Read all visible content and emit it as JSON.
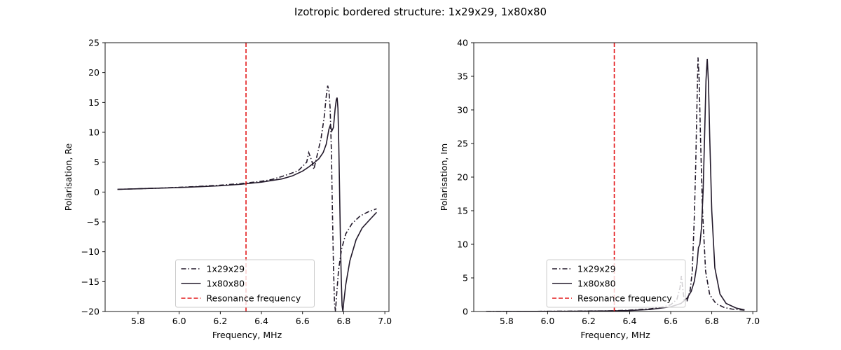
{
  "figure": {
    "title": "Izotropic bordered structure: 1x29x29, 1x80x80"
  },
  "chart_data": [
    {
      "type": "line",
      "xlabel": "Frequency, MHz",
      "ylabel": "Polarisation, Re",
      "xlim": [
        5.64,
        7.02
      ],
      "ylim": [
        -20,
        25
      ],
      "xticks": [
        5.8,
        6.0,
        6.2,
        6.4,
        6.6,
        6.8,
        7.0
      ],
      "yticks": [
        -20,
        -15,
        -10,
        -5,
        0,
        5,
        10,
        15,
        20,
        25
      ],
      "xtick_labels": [
        "5.8",
        "6.0",
        "6.2",
        "6.4",
        "6.6",
        "6.8",
        "7.0"
      ],
      "ytick_labels": [
        "−20",
        "−15",
        "−10",
        "−5",
        "0",
        "5",
        "10",
        "15",
        "20",
        "25"
      ],
      "legend_position": "lower center",
      "resonance_x": 6.325,
      "series": [
        {
          "name": "1x29x29",
          "style": "dashdot",
          "color": "#231a2b",
          "points": [
            [
              5.7,
              0.45
            ],
            [
              5.8,
              0.55
            ],
            [
              5.9,
              0.65
            ],
            [
              6.0,
              0.8
            ],
            [
              6.1,
              0.95
            ],
            [
              6.2,
              1.15
            ],
            [
              6.3,
              1.4
            ],
            [
              6.4,
              1.8
            ],
            [
              6.45,
              2.1
            ],
            [
              6.5,
              2.6
            ],
            [
              6.55,
              3.2
            ],
            [
              6.58,
              3.6
            ],
            [
              6.6,
              4.3
            ],
            [
              6.62,
              5.0
            ],
            [
              6.63,
              6.6
            ],
            [
              6.645,
              5.2
            ],
            [
              6.655,
              3.8
            ],
            [
              6.665,
              5.3
            ],
            [
              6.675,
              6.8
            ],
            [
              6.69,
              9.0
            ],
            [
              6.705,
              12.5
            ],
            [
              6.715,
              16.0
            ],
            [
              6.722,
              17.8
            ],
            [
              6.728,
              17.0
            ],
            [
              6.734,
              14.0
            ],
            [
              6.74,
              7.0
            ],
            [
              6.745,
              -3.0
            ],
            [
              6.75,
              -12.0
            ],
            [
              6.755,
              -18.5
            ],
            [
              6.76,
              -20
            ],
            [
              6.765,
              -17.5
            ],
            [
              6.775,
              -13.0
            ],
            [
              6.79,
              -9.5
            ],
            [
              6.81,
              -7.0
            ],
            [
              6.84,
              -5.3
            ],
            [
              6.88,
              -4.0
            ],
            [
              6.92,
              -3.3
            ],
            [
              6.96,
              -2.8
            ]
          ]
        },
        {
          "name": "1x80x80",
          "style": "solid",
          "color": "#231a2b",
          "points": [
            [
              5.7,
              0.45
            ],
            [
              5.8,
              0.55
            ],
            [
              5.9,
              0.65
            ],
            [
              6.0,
              0.75
            ],
            [
              6.1,
              0.9
            ],
            [
              6.2,
              1.05
            ],
            [
              6.3,
              1.3
            ],
            [
              6.4,
              1.65
            ],
            [
              6.5,
              2.2
            ],
            [
              6.55,
              2.7
            ],
            [
              6.6,
              3.5
            ],
            [
              6.63,
              4.2
            ],
            [
              6.66,
              5.0
            ],
            [
              6.68,
              5.6
            ],
            [
              6.7,
              6.6
            ],
            [
              6.715,
              8.0
            ],
            [
              6.728,
              10.5
            ],
            [
              6.735,
              11.2
            ],
            [
              6.742,
              10.2
            ],
            [
              6.75,
              10.8
            ],
            [
              6.758,
              13.8
            ],
            [
              6.764,
              15.5
            ],
            [
              6.768,
              15.8
            ],
            [
              6.772,
              14.0
            ],
            [
              6.776,
              8.0
            ],
            [
              6.78,
              0.0
            ],
            [
              6.784,
              -8.0
            ],
            [
              6.788,
              -14.5
            ],
            [
              6.792,
              -19.0
            ],
            [
              6.796,
              -20
            ],
            [
              6.8,
              -18.5
            ],
            [
              6.81,
              -15.5
            ],
            [
              6.83,
              -11.5
            ],
            [
              6.86,
              -8.0
            ],
            [
              6.89,
              -6.0
            ],
            [
              6.93,
              -4.5
            ],
            [
              6.96,
              -3.4
            ]
          ]
        },
        {
          "name": "Resonance frequency",
          "style": "dashed",
          "color": "#e31a1c",
          "points": [
            [
              6.325,
              -20
            ],
            [
              6.325,
              25
            ]
          ]
        }
      ]
    },
    {
      "type": "line",
      "xlabel": "Frequency, MHz",
      "ylabel": "Polarisation, Im",
      "xlim": [
        5.64,
        7.02
      ],
      "ylim": [
        0,
        40
      ],
      "xticks": [
        5.8,
        6.0,
        6.2,
        6.4,
        6.6,
        6.8,
        7.0
      ],
      "yticks": [
        0,
        5,
        10,
        15,
        20,
        25,
        30,
        35,
        40
      ],
      "xtick_labels": [
        "5.8",
        "6.0",
        "6.2",
        "6.4",
        "6.6",
        "6.8",
        "7.0"
      ],
      "ytick_labels": [
        "0",
        "5",
        "10",
        "15",
        "20",
        "25",
        "30",
        "35",
        "40"
      ],
      "legend_position": "lower center",
      "resonance_x": 6.325,
      "series": [
        {
          "name": "1x29x29",
          "style": "dashdot",
          "color": "#231a2b",
          "points": [
            [
              5.7,
              0.0
            ],
            [
              5.9,
              0.02
            ],
            [
              6.1,
              0.05
            ],
            [
              6.3,
              0.1
            ],
            [
              6.4,
              0.2
            ],
            [
              6.5,
              0.4
            ],
            [
              6.55,
              0.6
            ],
            [
              6.6,
              1.0
            ],
            [
              6.63,
              1.8
            ],
            [
              6.645,
              3.5
            ],
            [
              6.652,
              5.3
            ],
            [
              6.658,
              3.6
            ],
            [
              6.665,
              1.8
            ],
            [
              6.68,
              1.6
            ],
            [
              6.695,
              3.2
            ],
            [
              6.705,
              6.0
            ],
            [
              6.715,
              14.0
            ],
            [
              6.722,
              22.0
            ],
            [
              6.728,
              31.0
            ],
            [
              6.733,
              37.8
            ],
            [
              6.738,
              35.0
            ],
            [
              6.745,
              26.0
            ],
            [
              6.755,
              15.0
            ],
            [
              6.77,
              6.0
            ],
            [
              6.79,
              2.5
            ],
            [
              6.82,
              1.2
            ],
            [
              6.86,
              0.6
            ],
            [
              6.9,
              0.35
            ],
            [
              6.96,
              0.2
            ]
          ]
        },
        {
          "name": "1x80x80",
          "style": "solid",
          "color": "#231a2b",
          "points": [
            [
              5.7,
              0.0
            ],
            [
              5.9,
              0.02
            ],
            [
              6.1,
              0.04
            ],
            [
              6.3,
              0.08
            ],
            [
              6.4,
              0.15
            ],
            [
              6.5,
              0.3
            ],
            [
              6.6,
              0.7
            ],
            [
              6.65,
              1.2
            ],
            [
              6.68,
              2.0
            ],
            [
              6.7,
              3.0
            ],
            [
              6.715,
              4.5
            ],
            [
              6.728,
              7.0
            ],
            [
              6.735,
              9.5
            ],
            [
              6.742,
              10.0
            ],
            [
              6.75,
              12.5
            ],
            [
              6.758,
              18.0
            ],
            [
              6.765,
              26.0
            ],
            [
              6.772,
              34.5
            ],
            [
              6.778,
              37.6
            ],
            [
              6.784,
              34.0
            ],
            [
              6.79,
              26.0
            ],
            [
              6.8,
              15.0
            ],
            [
              6.815,
              6.5
            ],
            [
              6.84,
              2.6
            ],
            [
              6.87,
              1.2
            ],
            [
              6.92,
              0.5
            ],
            [
              6.96,
              0.25
            ]
          ]
        },
        {
          "name": "Resonance frequency",
          "style": "dashed",
          "color": "#e31a1c",
          "points": [
            [
              6.325,
              0
            ],
            [
              6.325,
              40
            ]
          ]
        }
      ]
    }
  ]
}
